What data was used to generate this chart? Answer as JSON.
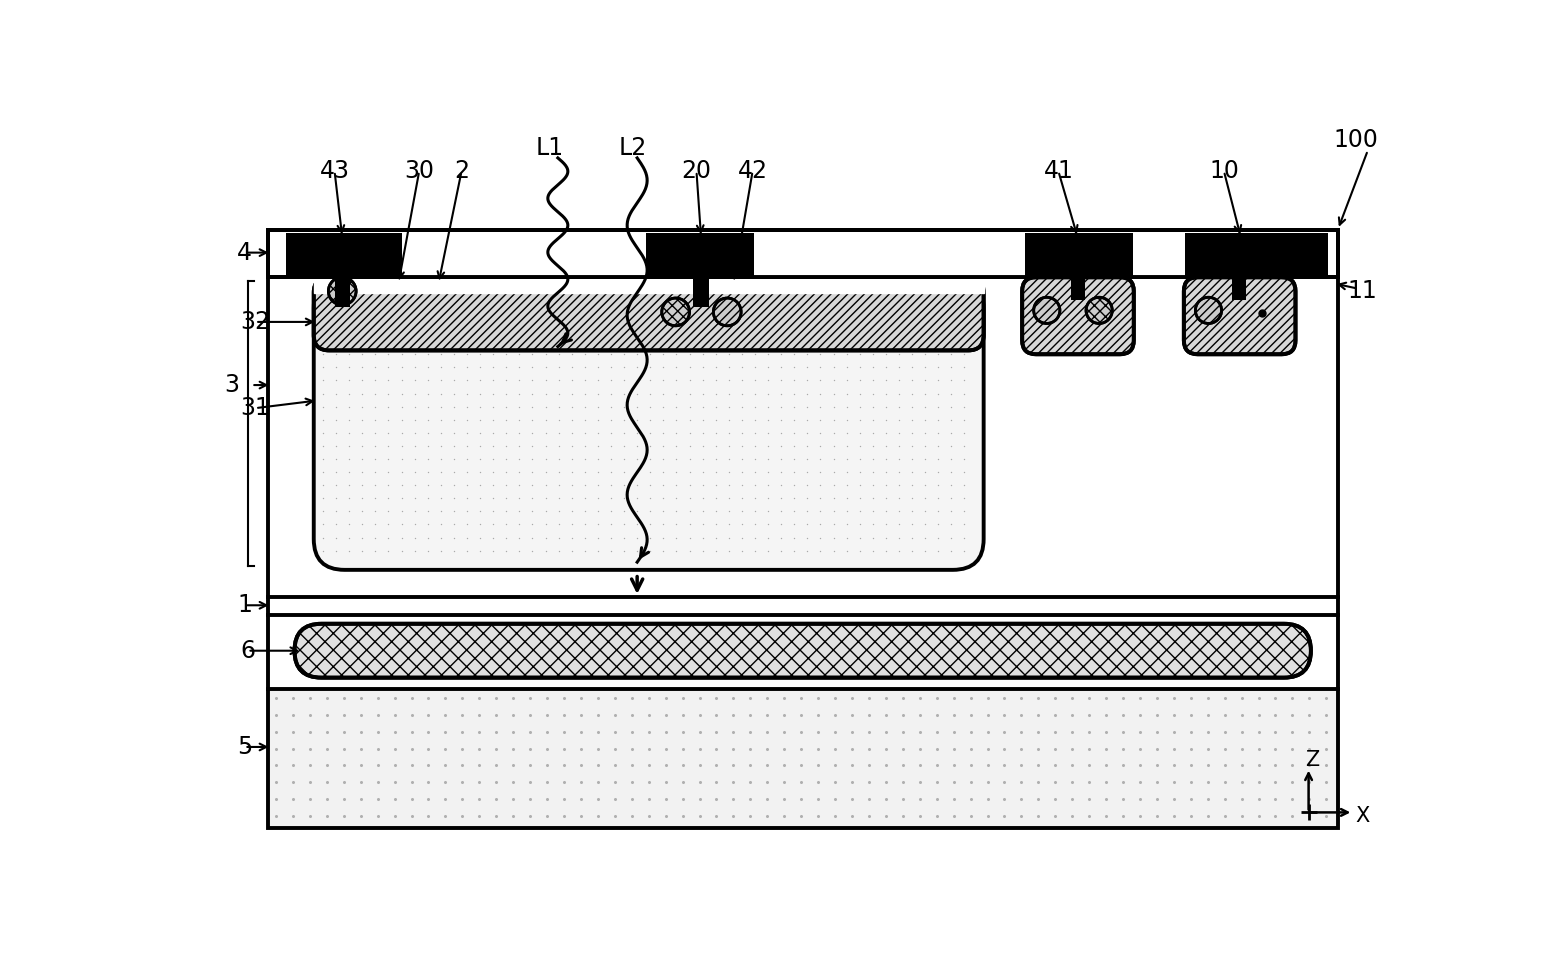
{
  "fig_width": 15.67,
  "fig_height": 9.63,
  "bg_color": "#ffffff",
  "label_100": "100",
  "label_4": "4",
  "label_43": "43",
  "label_30": "30",
  "label_2": "2",
  "label_L1": "L1",
  "label_L2": "L2",
  "label_20": "20",
  "label_42": "42",
  "label_41": "41",
  "label_10": "10",
  "label_11": "11",
  "label_32": "32",
  "label_3": "3",
  "label_31": "31",
  "label_1": "1",
  "label_6": "6",
  "label_5": "5",
  "label_Z": "Z",
  "label_X": "X",
  "black": "#000000",
  "white": "#ffffff",
  "light_gray": "#f0f0f0",
  "mid_gray": "#d8d8d8",
  "dark_gray": "#888888"
}
